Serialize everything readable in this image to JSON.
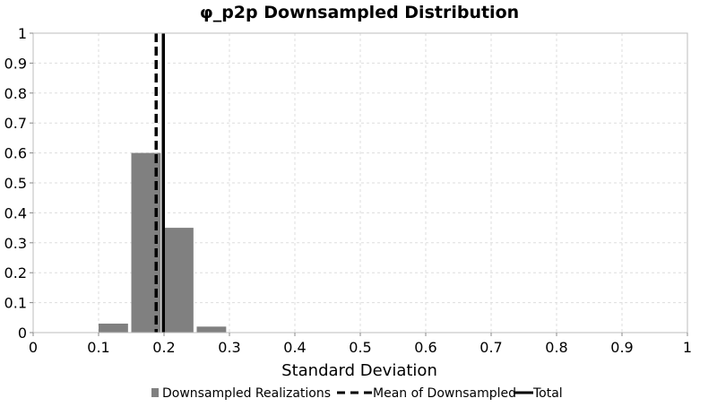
{
  "chart_data": {
    "type": "bar",
    "title": "φ_p2p Downsampled Distribution",
    "xlabel": "Standard Deviation",
    "ylabel": "",
    "xlim": [
      0,
      1
    ],
    "ylim": [
      0,
      1
    ],
    "xticks": [
      "0",
      "0.1",
      "0.2",
      "0.3",
      "0.4",
      "0.5",
      "0.6",
      "0.7",
      "0.8",
      "0.9",
      "1"
    ],
    "yticks": [
      "0",
      "0.1",
      "0.2",
      "0.3",
      "0.4",
      "0.5",
      "0.6",
      "0.7",
      "0.8",
      "0.9",
      "1"
    ],
    "grid": true,
    "legend_position": "bottom",
    "series": [
      {
        "name": "Downsampled Realizations",
        "color": "#808080",
        "bins": [
          {
            "x0": 0.1,
            "x1": 0.145,
            "value": 0.03
          },
          {
            "x0": 0.15,
            "x1": 0.195,
            "value": 0.6
          },
          {
            "x0": 0.2,
            "x1": 0.245,
            "value": 0.35
          },
          {
            "x0": 0.25,
            "x1": 0.295,
            "value": 0.02
          }
        ]
      }
    ],
    "vlines": [
      {
        "name": "Mean of Downsampled",
        "x": 0.188,
        "style": "dashed",
        "color": "#000000"
      },
      {
        "name": "Total",
        "x": 0.199,
        "style": "solid",
        "color": "#000000"
      }
    ]
  }
}
